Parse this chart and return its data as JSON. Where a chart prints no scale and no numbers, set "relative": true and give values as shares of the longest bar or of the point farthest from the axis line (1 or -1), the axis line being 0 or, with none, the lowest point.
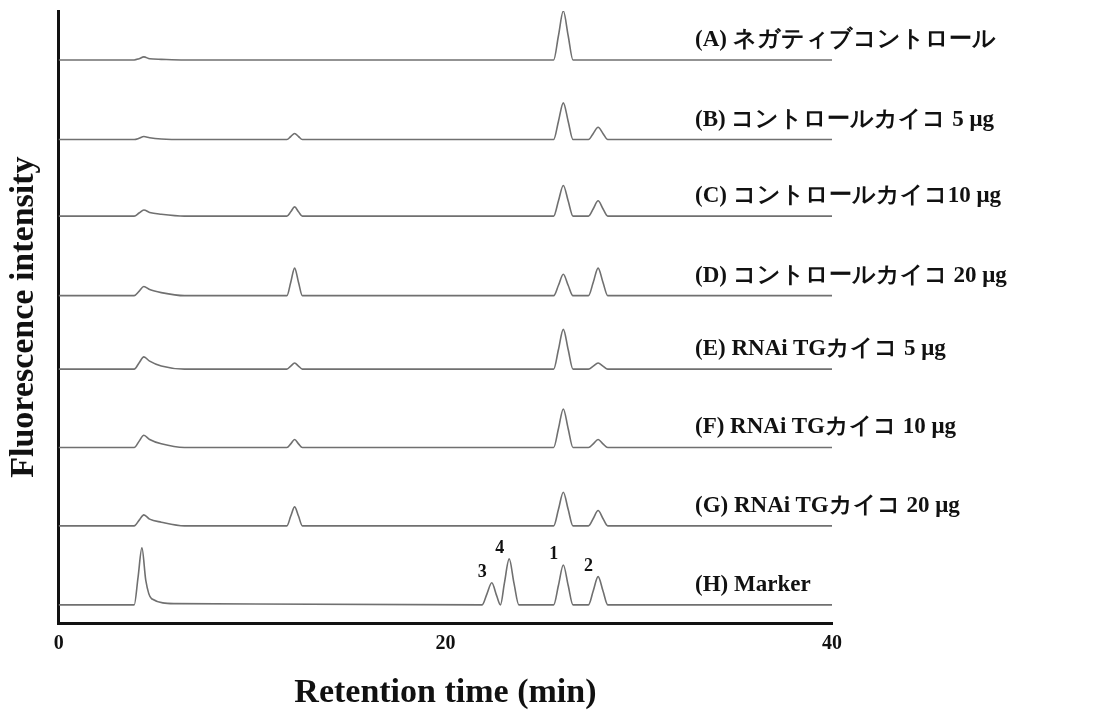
{
  "chart_data": {
    "type": "line",
    "relative": true,
    "xlabel": "Retention time (min)",
    "ylabel": "Fluorescence intensity",
    "xlim": [
      0,
      40
    ],
    "xticks": [
      0,
      20,
      40
    ],
    "grid": false,
    "legend": false,
    "marker": "none",
    "line_style": "solid",
    "tick_labels": "x",
    "annotations": [
      {
        "text": "1",
        "x": 26.1,
        "y": 0.095
      },
      {
        "text": "2",
        "x": 27.9,
        "y": 0.076
      },
      {
        "text": "3",
        "x": 22.4,
        "y": 0.066
      },
      {
        "text": "4",
        "x": 23.3,
        "y": 0.105
      }
    ],
    "series": [
      {
        "name": "(A) ネガティブコントロール",
        "color": "#707070",
        "x": [
          0,
          3.9,
          4.15,
          4.4,
          4.7,
          5.3,
          6.5,
          11.8,
          12.0,
          12.2,
          12.4,
          12.6,
          25.6,
          25.85,
          26.1,
          26.35,
          26.6,
          27.4,
          27.65,
          27.9,
          28.15,
          28.4,
          40
        ],
        "values": [
          0.92,
          0.92,
          0.922,
          0.925,
          0.922,
          0.921,
          0.92,
          0.92,
          0.92,
          0.92,
          0.92,
          0.92,
          0.92,
          0.96,
          1.0,
          0.96,
          0.92,
          0.92,
          0.92,
          0.92,
          0.92,
          0.92,
          0.92
        ]
      },
      {
        "name": "(B) コントロールカイコ 5 μg",
        "color": "#707070",
        "x": [
          0,
          3.9,
          4.15,
          4.4,
          4.7,
          5.3,
          6.5,
          11.8,
          12.0,
          12.2,
          12.4,
          12.6,
          25.6,
          25.85,
          26.1,
          26.35,
          26.6,
          27.4,
          27.65,
          27.9,
          28.15,
          28.4,
          40
        ],
        "values": [
          0.79,
          0.79,
          0.792,
          0.795,
          0.793,
          0.791,
          0.79,
          0.79,
          0.795,
          0.8,
          0.795,
          0.79,
          0.79,
          0.82,
          0.85,
          0.82,
          0.79,
          0.79,
          0.8,
          0.81,
          0.8,
          0.79,
          0.79
        ]
      },
      {
        "name": "(C) コントロールカイコ10 μg",
        "color": "#707070",
        "x": [
          0,
          3.9,
          4.15,
          4.4,
          4.7,
          5.3,
          6.5,
          11.8,
          12.0,
          12.2,
          12.4,
          12.6,
          25.6,
          25.85,
          26.1,
          26.35,
          26.6,
          27.4,
          27.65,
          27.9,
          28.15,
          28.4,
          40
        ],
        "values": [
          0.665,
          0.665,
          0.67,
          0.675,
          0.671,
          0.668,
          0.665,
          0.665,
          0.672,
          0.68,
          0.672,
          0.665,
          0.665,
          0.69,
          0.715,
          0.69,
          0.665,
          0.665,
          0.677,
          0.69,
          0.677,
          0.665,
          0.665
        ]
      },
      {
        "name": "(D) コントロールカイコ 20 μg",
        "color": "#707070",
        "x": [
          0,
          3.9,
          4.15,
          4.4,
          4.7,
          5.3,
          6.5,
          11.8,
          12.0,
          12.2,
          12.4,
          12.6,
          25.6,
          25.85,
          26.1,
          26.35,
          26.6,
          27.4,
          27.65,
          27.9,
          28.15,
          28.4,
          40
        ],
        "values": [
          0.535,
          0.535,
          0.542,
          0.55,
          0.545,
          0.54,
          0.535,
          0.535,
          0.557,
          0.58,
          0.557,
          0.535,
          0.535,
          0.552,
          0.57,
          0.552,
          0.535,
          0.535,
          0.557,
          0.58,
          0.557,
          0.535,
          0.535
        ]
      },
      {
        "name": "(E) RNAi TGカイコ 5 μg",
        "color": "#707070",
        "x": [
          0,
          3.9,
          4.15,
          4.4,
          4.7,
          5.3,
          6.5,
          11.8,
          12.0,
          12.2,
          12.4,
          12.6,
          25.6,
          25.85,
          26.1,
          26.35,
          26.6,
          27.4,
          27.65,
          27.9,
          28.15,
          28.4,
          40
        ],
        "values": [
          0.415,
          0.415,
          0.425,
          0.435,
          0.428,
          0.42,
          0.415,
          0.415,
          0.42,
          0.425,
          0.42,
          0.415,
          0.415,
          0.447,
          0.48,
          0.447,
          0.415,
          0.415,
          0.42,
          0.425,
          0.42,
          0.415,
          0.415
        ]
      },
      {
        "name": "(F) RNAi TGカイコ 10 μg",
        "color": "#707070",
        "x": [
          0,
          3.9,
          4.15,
          4.4,
          4.7,
          5.3,
          6.5,
          11.8,
          12.0,
          12.2,
          12.4,
          12.6,
          25.6,
          25.85,
          26.1,
          26.35,
          26.6,
          27.4,
          27.65,
          27.9,
          28.15,
          28.4,
          40
        ],
        "values": [
          0.287,
          0.287,
          0.297,
          0.307,
          0.3,
          0.293,
          0.287,
          0.287,
          0.293,
          0.3,
          0.293,
          0.287,
          0.287,
          0.318,
          0.35,
          0.318,
          0.287,
          0.287,
          0.293,
          0.3,
          0.293,
          0.287,
          0.287
        ]
      },
      {
        "name": "(G) RNAi TGカイコ 20 μg",
        "color": "#707070",
        "x": [
          0,
          3.9,
          4.15,
          4.4,
          4.7,
          5.3,
          6.5,
          11.8,
          12.0,
          12.2,
          12.4,
          12.6,
          25.6,
          25.85,
          26.1,
          26.35,
          26.6,
          27.4,
          27.65,
          27.9,
          28.15,
          28.4,
          40
        ],
        "values": [
          0.159,
          0.159,
          0.168,
          0.177,
          0.17,
          0.165,
          0.159,
          0.159,
          0.175,
          0.19,
          0.175,
          0.159,
          0.159,
          0.186,
          0.214,
          0.186,
          0.159,
          0.159,
          0.171,
          0.184,
          0.171,
          0.159,
          0.159
        ]
      },
      {
        "name": "(H) Marker",
        "color": "#707070",
        "x": [
          0,
          3.9,
          4.1,
          4.3,
          4.5,
          4.8,
          6,
          21.9,
          22.15,
          22.4,
          22.65,
          22.85,
          23.05,
          23.3,
          23.55,
          23.8,
          25.6,
          25.85,
          26.1,
          26.35,
          26.6,
          27.4,
          27.65,
          27.9,
          28.15,
          28.4,
          40
        ],
        "values": [
          0.03,
          0.03,
          0.075,
          0.123,
          0.07,
          0.04,
          0.032,
          0.03,
          0.048,
          0.066,
          0.045,
          0.03,
          0.065,
          0.105,
          0.065,
          0.03,
          0.03,
          0.062,
          0.095,
          0.062,
          0.03,
          0.03,
          0.053,
          0.076,
          0.053,
          0.03,
          0.03
        ]
      }
    ]
  }
}
